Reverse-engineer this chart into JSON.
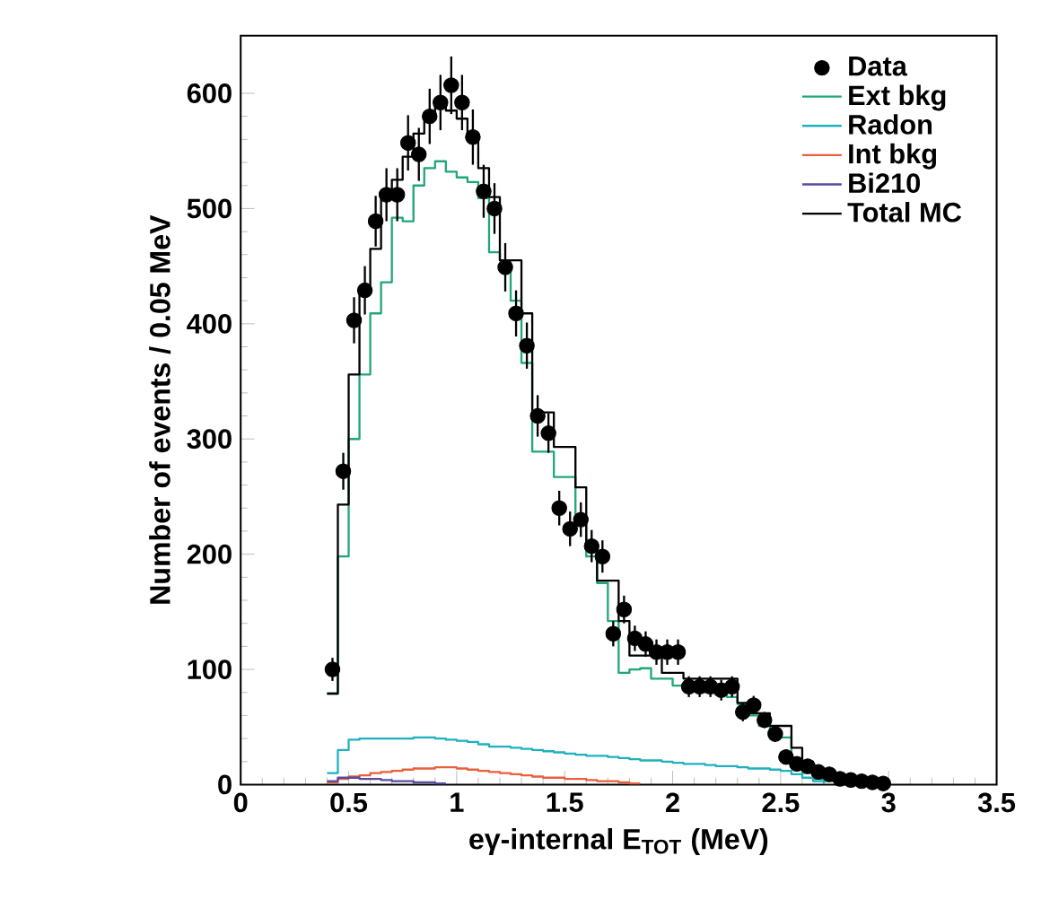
{
  "chart_data": {
    "type": "step",
    "xlabel": "eγ-internal E$_{TOT}$ (MeV)",
    "ylabel": "Number of events / 0.05 MeV",
    "xlim": [
      0,
      3.5
    ],
    "ylim": [
      0,
      650
    ],
    "xticks": [
      0,
      0.5,
      1,
      1.5,
      2,
      2.5,
      3,
      3.5
    ],
    "yticks": [
      0,
      100,
      200,
      300,
      400,
      500,
      600
    ],
    "legend": "top right",
    "x": [
      0.4,
      0.45,
      0.5,
      0.55,
      0.6,
      0.65,
      0.7,
      0.75,
      0.8,
      0.85,
      0.9,
      0.95,
      1.0,
      1.05,
      1.1,
      1.15,
      1.2,
      1.25,
      1.3,
      1.35,
      1.4,
      1.45,
      1.5,
      1.55,
      1.6,
      1.65,
      1.7,
      1.75,
      1.8,
      1.85,
      1.9,
      1.95,
      2.0,
      2.05,
      2.1,
      2.15,
      2.2,
      2.25,
      2.3,
      2.35,
      2.4,
      2.45,
      2.5,
      2.55,
      2.6,
      2.65,
      2.7,
      2.75,
      2.8,
      2.85
    ],
    "series": [
      {
        "name": "Data",
        "type": "scatter",
        "color": "#000000",
        "x": [
          0.425,
          0.475,
          0.525,
          0.575,
          0.625,
          0.675,
          0.725,
          0.775,
          0.825,
          0.875,
          0.925,
          0.975,
          1.025,
          1.075,
          1.125,
          1.175,
          1.225,
          1.275,
          1.325,
          1.375,
          1.425,
          1.475,
          1.525,
          1.575,
          1.625,
          1.675,
          1.725,
          1.775,
          1.825,
          1.875,
          1.925,
          1.975,
          2.025,
          2.075,
          2.125,
          2.175,
          2.225,
          2.275,
          2.325,
          2.375,
          2.425,
          2.475,
          2.525,
          2.575,
          2.625,
          2.675,
          2.725,
          2.775,
          2.825,
          2.875,
          2.925,
          2.975
        ],
        "values": [
          100,
          272,
          403,
          429,
          489,
          512,
          512,
          557,
          547,
          580,
          592,
          607,
          592,
          562,
          515,
          500,
          449,
          409,
          381,
          320,
          305,
          240,
          222,
          230,
          207,
          198,
          131,
          152,
          127,
          122,
          115,
          115,
          115,
          85,
          85,
          85,
          82,
          85,
          63,
          69,
          56,
          44,
          24,
          18,
          16,
          11,
          9,
          5,
          4,
          3,
          2,
          1
        ],
        "errors": [
          10,
          16,
          20,
          21,
          22,
          23,
          23,
          24,
          23,
          24,
          24,
          25,
          24,
          24,
          23,
          22,
          21,
          20,
          20,
          18,
          17,
          15,
          15,
          15,
          14,
          14,
          11,
          12,
          11,
          11,
          11,
          11,
          11,
          9,
          9,
          9,
          9,
          9,
          8,
          8,
          7,
          7,
          5,
          4,
          4,
          3,
          3,
          2,
          2,
          2,
          1,
          1
        ]
      },
      {
        "name": "Ext bkg",
        "color": "#1fa67a",
        "values": [
          79,
          198,
          300,
          356,
          409,
          436,
          492,
          489,
          520,
          535,
          541,
          532,
          527,
          523,
          509,
          462,
          455,
          420,
          366,
          289,
          289,
          267,
          267,
          230,
          198,
          175,
          142,
          97,
          100,
          101,
          92,
          92,
          86,
          84,
          82,
          80,
          78,
          76,
          70,
          60,
          51,
          45,
          41,
          17,
          10,
          5,
          3,
          2,
          1,
          null
        ]
      },
      {
        "name": "Radon",
        "color": "#1fb0c0",
        "values": [
          10,
          30,
          39,
          40,
          40,
          40,
          40,
          40,
          41,
          41,
          40,
          39,
          38,
          37,
          35,
          33,
          33,
          32,
          31,
          30,
          29,
          28,
          27,
          26,
          25,
          25,
          24,
          23,
          22,
          21,
          21,
          20,
          19,
          18,
          18,
          17,
          16,
          16,
          15,
          14,
          14,
          13,
          12,
          9,
          6,
          3,
          1,
          null,
          null,
          null
        ]
      },
      {
        "name": "Int bkg",
        "color": "#e8603c",
        "values": [
          2,
          5,
          7,
          8,
          10,
          11,
          12,
          13,
          14,
          14,
          15,
          15,
          14,
          13,
          12,
          11,
          10,
          9,
          8,
          7,
          6,
          6,
          5,
          5,
          4,
          3,
          3,
          2,
          1,
          1,
          null,
          null,
          null,
          null,
          null,
          null,
          null,
          null,
          null,
          null,
          null,
          null,
          null,
          null,
          null,
          null,
          null,
          null,
          null,
          null
        ]
      },
      {
        "name": "Bi210",
        "color": "#5a4aa0",
        "values": [
          3,
          6,
          6,
          5,
          5,
          4,
          3,
          3,
          2,
          2,
          1,
          1,
          null,
          null,
          null,
          null,
          null,
          null,
          null,
          null,
          null,
          null,
          null,
          null,
          null,
          null,
          null,
          null,
          null,
          null,
          null,
          null,
          null,
          null,
          null,
          null,
          null,
          null,
          null,
          null,
          null,
          null,
          null,
          null,
          null,
          null,
          null,
          null,
          null,
          null
        ]
      },
      {
        "name": "Total MC",
        "color": "#000000",
        "values": [
          79,
          243,
          356,
          430,
          465,
          515,
          525,
          545,
          565,
          580,
          590,
          585,
          578,
          560,
          535,
          510,
          455,
          455,
          409,
          323,
          323,
          293,
          293,
          258,
          207,
          177,
          177,
          142,
          112,
          112,
          112,
          97,
          97,
          92,
          92,
          92,
          92,
          92,
          71,
          62,
          62,
          51,
          51,
          32,
          20,
          12,
          7,
          4,
          2,
          1
        ]
      }
    ]
  }
}
